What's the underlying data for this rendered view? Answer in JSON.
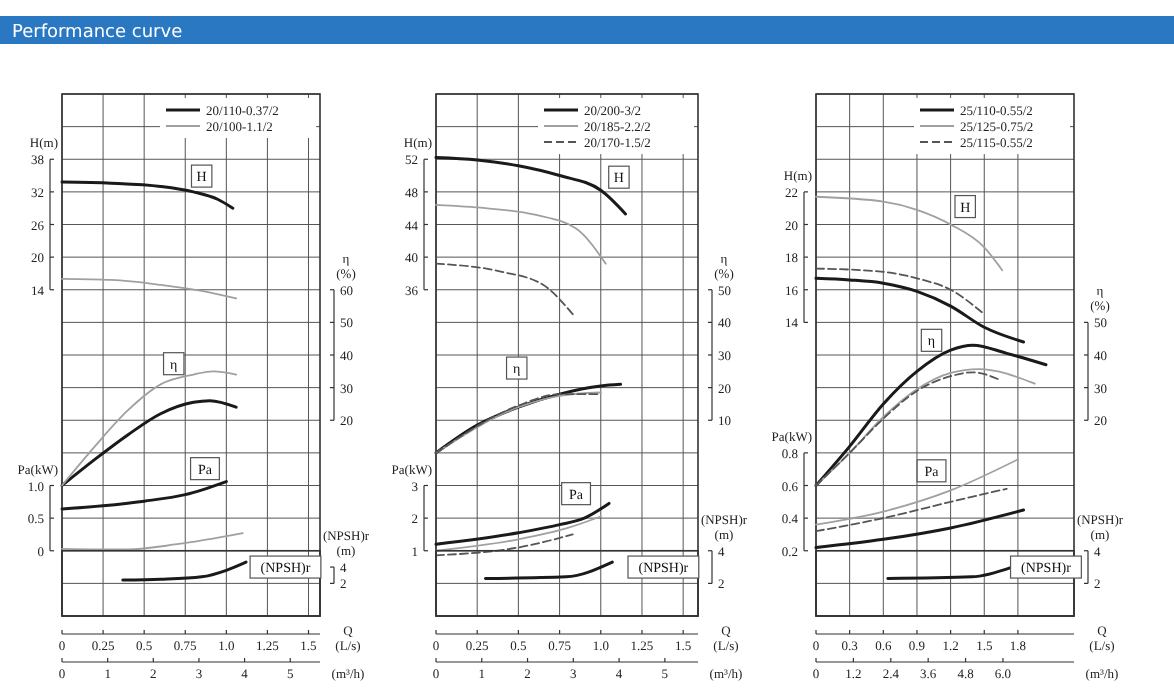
{
  "chart_data": [
    {
      "type": "line",
      "title": "Performance curve",
      "xlabel": "Q\n(L/s)",
      "x2label": "(m³/h)",
      "ylabel": "H(m)",
      "y2label": "η\n(%)",
      "y3label": "Pa(kW)",
      "xlim": [
        0,
        1.57
      ],
      "xticks": [
        0,
        0.25,
        0.5,
        0.75,
        {
          "value": 1,
          "label": "1.0"
        },
        1.25,
        1.5
      ],
      "x2lim": [
        0,
        5.652
      ],
      "x2ticks": [
        0,
        1,
        2,
        3,
        4,
        5
      ],
      "ylim": [
        -46,
        50
      ],
      "yticks": [
        14,
        20,
        26,
        32,
        38
      ],
      "y2lim": [
        -40,
        120
      ],
      "y2ticks": [
        20,
        30,
        40,
        50,
        60
      ],
      "y3lim": [
        -1,
        7
      ],
      "y3ticks": [
        0,
        0.5,
        {
          "value": 1,
          "label": "1.0"
        }
      ],
      "grid": true,
      "legend": "top right",
      "annotations": [
        {
          "text": "H",
          "x": 0.85,
          "y": 34.9
        },
        {
          "text": "η",
          "x": 0.68,
          "y": 0.4
        },
        {
          "text": "Pa",
          "x": 0.87,
          "y": -18.9
        }
      ],
      "series": [
        {
          "name": "20/110-0.37/2",
          "color": "#1a1a1a",
          "line_style": "solid",
          "axis": "y",
          "x": [
            0,
            0.3,
            0.6,
            0.8,
            0.95,
            1.04
          ],
          "values": [
            33.8,
            33.6,
            33.0,
            32.0,
            30.6,
            29.0
          ]
        },
        {
          "color": "#1a1a1a",
          "line_style": "solid",
          "axis": "y2",
          "x": [
            0,
            0.2,
            0.4,
            0.6,
            0.8,
            0.9,
            1.06
          ],
          "values": [
            0,
            8,
            15.5,
            22,
            25.5,
            26,
            24
          ]
        },
        {
          "color": "#1a1a1a",
          "line_style": "solid",
          "axis": "y3",
          "x": [
            0,
            0.25,
            0.5,
            0.75,
            1.0
          ],
          "values": [
            0.64,
            0.69,
            0.76,
            0.86,
            1.06
          ]
        },
        {
          "name": "20/100-1.1/2",
          "color": "#a0a0a0",
          "line_style": "solid",
          "axis": "y",
          "x": [
            0,
            0.3,
            0.6,
            0.85,
            1.06
          ],
          "values": [
            16.0,
            15.8,
            14.9,
            13.8,
            12.4
          ]
        },
        {
          "color": "#a0a0a0",
          "line_style": "solid",
          "axis": "y2",
          "x": [
            0,
            0.2,
            0.4,
            0.6,
            0.8,
            0.92,
            1.06
          ],
          "values": [
            0,
            12,
            23,
            31,
            34,
            35,
            34
          ]
        },
        {
          "color": "#a0a0a0",
          "line_style": "solid",
          "axis": "y3",
          "x": [
            0,
            0.4,
            0.7,
            1.1
          ],
          "values": [
            0.03,
            0.02,
            0.1,
            0.27
          ]
        }
      ]
    },
    {
      "type": "line",
      "ylabel": "(NPSH)r\n(m)",
      "xlim": [
        0,
        1.57
      ],
      "ylim": [
        -2,
        6
      ],
      "yticks": [
        2,
        4
      ],
      "tick_labels": "y",
      "annotations": [
        {
          "text": "(NPSH)r",
          "x": 1.36,
          "y": 4
        }
      ],
      "series": [
        {
          "color": "#1a1a1a",
          "line_style": "solid",
          "x": [
            0.37,
            0.6,
            0.85,
            1.0,
            1.12
          ],
          "values": [
            2.4,
            2.5,
            2.8,
            3.6,
            4.6
          ]
        }
      ]
    },
    {
      "type": "line",
      "xlabel": "Q\n(L/s)",
      "x2label": "(m³/h)",
      "ylabel": "H(m)",
      "y2label": "η\n(%)",
      "y3label": "Pa(kW)",
      "xlim": [
        0,
        1.59
      ],
      "xticks": [
        0,
        0.25,
        0.5,
        0.75,
        {
          "value": 1,
          "label": "1.0"
        },
        1.25,
        1.5
      ],
      "x2lim": [
        0,
        5.724
      ],
      "x2ticks": [
        0,
        1,
        2,
        3,
        4,
        5
      ],
      "ylim": [
        -4,
        60
      ],
      "yticks": [
        36,
        40,
        44,
        48,
        52
      ],
      "y2lim": [
        -50,
        110
      ],
      "y2ticks": [
        10,
        20,
        30,
        40,
        50
      ],
      "y3lim": [
        -1,
        15
      ],
      "y3ticks": [
        1,
        2,
        3
      ],
      "grid": true,
      "legend": "top right",
      "annotations": [
        {
          "text": "H",
          "x": 1.11,
          "y": 49.8
        },
        {
          "text": "η",
          "x": 0.49,
          "y": 26.4
        },
        {
          "text": "Pa",
          "x": 0.85,
          "y": 11
        }
      ],
      "series": [
        {
          "name": "20/200-3/2",
          "color": "#1a1a1a",
          "line_style": "solid",
          "axis": "y",
          "x": [
            0,
            0.25,
            0.5,
            0.75,
            1.0,
            1.15
          ],
          "values": [
            52.2,
            51.9,
            51.2,
            50.0,
            48.2,
            45.3
          ]
        },
        {
          "color": "#1a1a1a",
          "line_style": "solid",
          "axis": "y2",
          "x": [
            0,
            0.25,
            0.5,
            0.75,
            1.0,
            1.12
          ],
          "values": [
            0,
            8.5,
            14,
            18,
            20.5,
            21
          ]
        },
        {
          "color": "#1a1a1a",
          "line_style": "solid",
          "axis": "y3",
          "x": [
            0,
            0.5,
            0.75,
            0.9,
            1.05
          ],
          "values": [
            1.2,
            1.55,
            1.8,
            2.0,
            2.45
          ]
        },
        {
          "name": "20/185-2.2/2",
          "color": "#a0a0a0",
          "line_style": "solid",
          "axis": "y",
          "x": [
            0,
            0.3,
            0.6,
            0.85,
            1.03
          ],
          "values": [
            46.4,
            46.0,
            45.2,
            43.5,
            39.2
          ]
        },
        {
          "color": "#a0a0a0",
          "line_style": "solid",
          "axis": "y2",
          "x": [
            0,
            0.5,
            0.75,
            1.0
          ],
          "values": [
            0,
            14,
            17.5,
            18.5
          ]
        },
        {
          "color": "#a0a0a0",
          "line_style": "solid",
          "axis": "y3",
          "x": [
            0,
            0.5,
            0.8,
            1.0
          ],
          "values": [
            1.0,
            1.35,
            1.7,
            2.05
          ]
        },
        {
          "name": "20/170-1.5/2",
          "color": "#555555",
          "line_style": "dashed",
          "axis": "y",
          "x": [
            0,
            0.4,
            0.65,
            0.83
          ],
          "values": [
            39.2,
            38.2,
            36.6,
            33
          ]
        },
        {
          "color": "#555555",
          "line_style": "dashed",
          "axis": "y2",
          "x": [
            0,
            0.5,
            0.75,
            1.0
          ],
          "values": [
            0,
            14.5,
            18,
            18
          ]
        },
        {
          "color": "#555555",
          "line_style": "dashed",
          "axis": "y3",
          "x": [
            0,
            0.5,
            0.83
          ],
          "values": [
            0.86,
            1.1,
            1.5
          ]
        }
      ]
    },
    {
      "type": "line",
      "ylabel": "(NPSH)r\n(m)",
      "xlim": [
        0,
        1.59
      ],
      "ylim": [
        0,
        4
      ],
      "yticks": [
        2,
        4
      ],
      "tick_labels": "y",
      "annotations": [
        {
          "text": "(NPSH)r",
          "x": 1.38,
          "y": 3
        }
      ],
      "series": [
        {
          "color": "#1a1a1a",
          "line_style": "solid",
          "x": [
            0.3,
            0.79,
            1.07
          ],
          "values": [
            2.3,
            2.4,
            3.3
          ]
        }
      ]
    },
    {
      "type": "line",
      "xlabel": "Q\n(L/s)",
      "x2label": "(m³/h)",
      "ylabel": "H(m)",
      "y2label": "η\n(%)",
      "y3label": "Pa(kW)",
      "xlim": [
        0,
        2.3
      ],
      "xticks": [
        0,
        0.3,
        0.6,
        0.9,
        1.2,
        1.5,
        1.8
      ],
      "x2lim": [
        0,
        8.28
      ],
      "x2ticks": [
        0,
        1.2,
        2.4,
        3.6,
        4.8,
        {
          "value": 6,
          "label": "6.0"
        }
      ],
      "ylim": [
        -4,
        28
      ],
      "yticks": [
        14,
        16,
        18,
        20,
        22
      ],
      "y2lim": [
        -40,
        120
      ],
      "y2ticks": [
        20,
        30,
        40,
        50
      ],
      "y3lim": [
        -0.2,
        3.0
      ],
      "y3ticks": [
        0.2,
        0.4,
        0.6,
        0.8
      ],
      "grid": true,
      "legend": "top right",
      "annotations": [
        {
          "text": "H",
          "x": 1.33,
          "y": 21.1
        },
        {
          "text": "η",
          "x": 1.03,
          "y": 12.9
        },
        {
          "text": "Pa",
          "x": 1.03,
          "y": 4.9
        }
      ],
      "series": [
        {
          "name": "25/110-0.55/2",
          "color": "#1a1a1a",
          "line_style": "solid",
          "axis": "y",
          "x": [
            0,
            0.3,
            0.6,
            0.9,
            1.2,
            1.5,
            1.85
          ],
          "values": [
            16.7,
            16.6,
            16.4,
            15.9,
            15.0,
            13.7,
            12.8
          ]
        },
        {
          "color": "#1a1a1a",
          "line_style": "solid",
          "axis": "y2",
          "x": [
            0,
            0.3,
            0.6,
            0.9,
            1.2,
            1.4,
            1.7,
            2.05
          ],
          "values": [
            0,
            12,
            25,
            35,
            41.5,
            43,
            40.5,
            37
          ]
        },
        {
          "color": "#1a1a1a",
          "line_style": "solid",
          "axis": "y3",
          "x": [
            0,
            0.6,
            1.2,
            1.85
          ],
          "values": [
            0.22,
            0.27,
            0.34,
            0.45
          ]
        },
        {
          "name": "25/125-0.75/2",
          "color": "#a0a0a0",
          "line_style": "solid",
          "axis": "y",
          "x": [
            0,
            0.6,
            0.9,
            1.2,
            1.5,
            1.66
          ],
          "values": [
            21.7,
            21.4,
            20.9,
            20.0,
            18.6,
            17.2
          ]
        },
        {
          "color": "#a0a0a0",
          "line_style": "solid",
          "axis": "y2",
          "x": [
            0,
            0.3,
            0.6,
            0.9,
            1.2,
            1.45,
            1.95
          ],
          "values": [
            0,
            10,
            21,
            29.5,
            34.5,
            35.7,
            31.2
          ]
        },
        {
          "color": "#a0a0a0",
          "line_style": "solid",
          "axis": "y3",
          "x": [
            0,
            0.6,
            1.2,
            1.8
          ],
          "values": [
            0.36,
            0.44,
            0.57,
            0.76
          ]
        },
        {
          "name": "25/115-0.55/2",
          "color": "#555555",
          "line_style": "dashed",
          "axis": "y",
          "x": [
            0,
            0.6,
            0.9,
            1.2,
            1.5
          ],
          "values": [
            17.3,
            17.1,
            16.7,
            16.0,
            14.5
          ]
        },
        {
          "color": "#555555",
          "line_style": "dashed",
          "axis": "y2",
          "x": [
            0,
            0.3,
            0.6,
            0.9,
            1.2,
            1.4,
            1.63
          ],
          "values": [
            0,
            10,
            20.5,
            29,
            33.5,
            34.7,
            32.5
          ]
        },
        {
          "color": "#555555",
          "line_style": "dashed",
          "axis": "y3",
          "x": [
            0,
            0.6,
            1.2,
            1.7
          ],
          "values": [
            0.32,
            0.4,
            0.5,
            0.58
          ]
        }
      ]
    },
    {
      "type": "line",
      "ylabel": "(NPSH)r\n(m)",
      "xlim": [
        0,
        2.3
      ],
      "ylim": [
        0,
        4
      ],
      "yticks": [
        2,
        4
      ],
      "tick_labels": "y",
      "annotations": [
        {
          "text": "(NPSH)r",
          "x": 2.05,
          "y": 3
        }
      ],
      "series": [
        {
          "color": "#1a1a1a",
          "line_style": "solid",
          "x": [
            0.64,
            1.39,
            1.75
          ],
          "values": [
            2.3,
            2.4,
            3.0
          ]
        }
      ]
    }
  ]
}
